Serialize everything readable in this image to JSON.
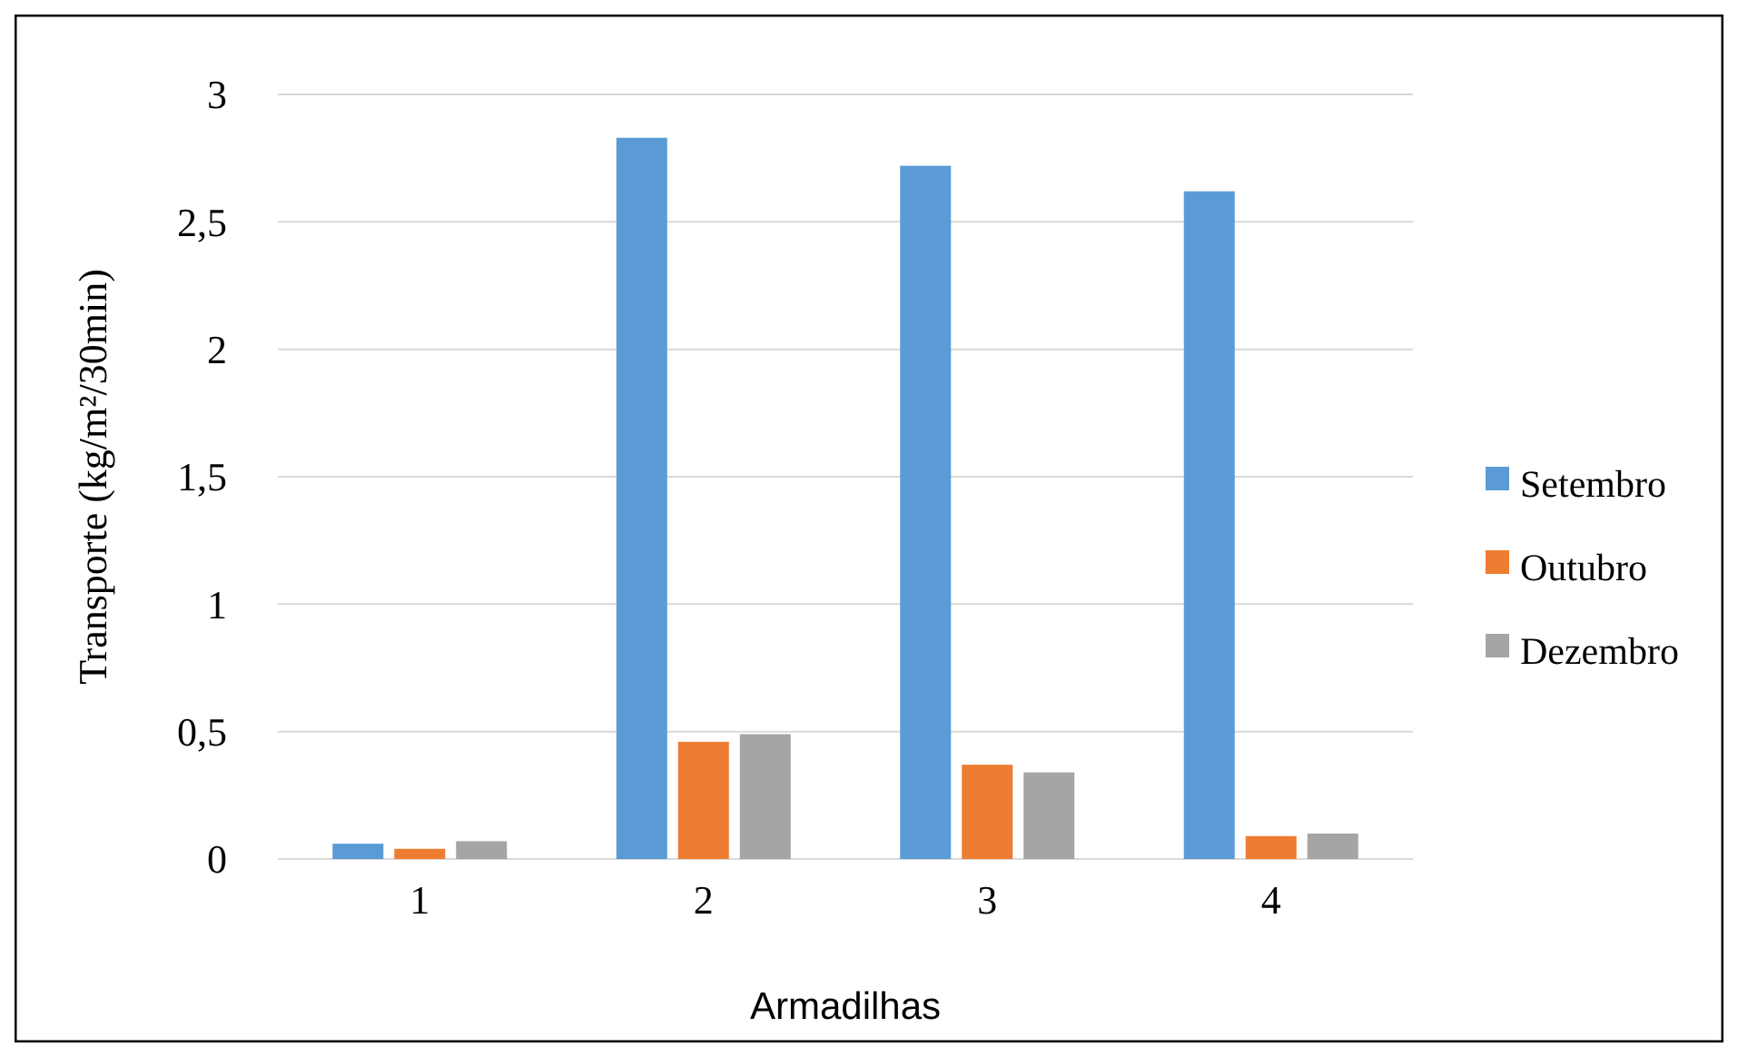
{
  "chart_data": {
    "type": "bar",
    "xlabel": "Armadilhas",
    "ylabel": "Transporte (kg/m²/30min)",
    "categories": [
      "1",
      "2",
      "3",
      "4"
    ],
    "series": [
      {
        "name": "Setembro",
        "color": "#5b9bd5",
        "values": [
          0.06,
          2.83,
          2.72,
          2.62
        ]
      },
      {
        "name": "Outubro",
        "color": "#ed7d31",
        "values": [
          0.04,
          0.46,
          0.37,
          0.09
        ]
      },
      {
        "name": "Dezembro",
        "color": "#a5a5a5",
        "values": [
          0.07,
          0.49,
          0.34,
          0.1
        ]
      }
    ],
    "ylim": [
      0,
      3
    ],
    "yticks": [
      0,
      {
        "value": 0.5,
        "label": "0,5"
      },
      1,
      {
        "value": 1.5,
        "label": "1,5"
      },
      2,
      {
        "value": 2.5,
        "label": "2,5"
      },
      3
    ],
    "grid": "y",
    "legend": "right"
  }
}
